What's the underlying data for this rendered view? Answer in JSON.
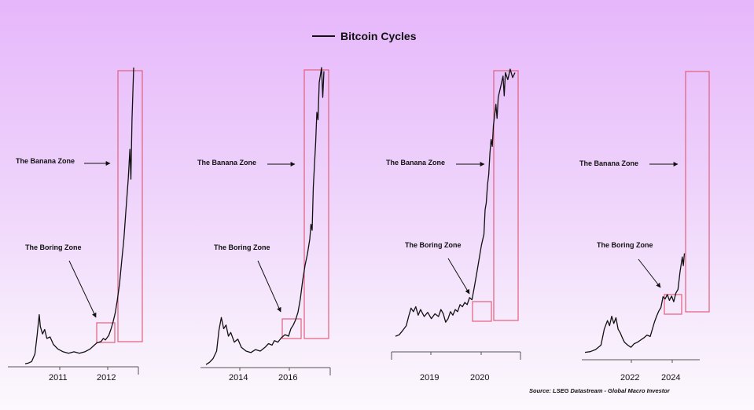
{
  "chart_data": {
    "type": "line",
    "title": "Bitcoin Cycles",
    "legend": {
      "entries": [
        "Bitcoin Cycles"
      ],
      "placement": "top-center"
    },
    "source": "Source: LSEG Datastream - Global Macro Investor",
    "grid": false,
    "colors": {
      "line": "#111111",
      "zone_box": "#e0607e",
      "axis": "#555555"
    },
    "panels": [
      {
        "x_ticks": [
          "2011",
          "2012"
        ],
        "annotations": [
          "The Banana Zone",
          "The Boring Zone"
        ],
        "series": [
          [
            0,
            2
          ],
          [
            3,
            3
          ],
          [
            6,
            5
          ],
          [
            9,
            15
          ],
          [
            11,
            40
          ],
          [
            12,
            55
          ],
          [
            13,
            68
          ],
          [
            14,
            52
          ],
          [
            16,
            42
          ],
          [
            18,
            48
          ],
          [
            20,
            36
          ],
          [
            23,
            38
          ],
          [
            26,
            28
          ],
          [
            30,
            22
          ],
          [
            35,
            18
          ],
          [
            40,
            16
          ],
          [
            45,
            18
          ],
          [
            50,
            16
          ],
          [
            55,
            18
          ],
          [
            60,
            22
          ],
          [
            63,
            26
          ],
          [
            66,
            30
          ],
          [
            70,
            32
          ],
          [
            72,
            36
          ],
          [
            74,
            34
          ],
          [
            77,
            40
          ],
          [
            79,
            48
          ],
          [
            81,
            58
          ],
          [
            83,
            70
          ],
          [
            85,
            88
          ],
          [
            87,
            110
          ],
          [
            89,
            140
          ],
          [
            91,
            170
          ],
          [
            93,
            210
          ],
          [
            95,
            250
          ],
          [
            96.5,
            290
          ],
          [
            97.5,
            250
          ],
          [
            98.5,
            330
          ],
          [
            100,
            400
          ]
        ]
      },
      {
        "x_ticks": [
          "2014",
          "2016"
        ],
        "annotations": [
          "The Banana Zone",
          "The Boring Zone"
        ],
        "series": [
          [
            0,
            2
          ],
          [
            3,
            5
          ],
          [
            6,
            10
          ],
          [
            9,
            20
          ],
          [
            11,
            48
          ],
          [
            13,
            65
          ],
          [
            15,
            50
          ],
          [
            17,
            55
          ],
          [
            19,
            40
          ],
          [
            21,
            45
          ],
          [
            24,
            32
          ],
          [
            27,
            36
          ],
          [
            30,
            25
          ],
          [
            34,
            20
          ],
          [
            38,
            18
          ],
          [
            42,
            22
          ],
          [
            46,
            20
          ],
          [
            50,
            25
          ],
          [
            53,
            30
          ],
          [
            56,
            28
          ],
          [
            58,
            34
          ],
          [
            61,
            32
          ],
          [
            64,
            38
          ],
          [
            67,
            42
          ],
          [
            70,
            40
          ],
          [
            72,
            50
          ],
          [
            74,
            55
          ],
          [
            76,
            62
          ],
          [
            78,
            72
          ],
          [
            80,
            90
          ],
          [
            82,
            115
          ],
          [
            84,
            135
          ],
          [
            86,
            150
          ],
          [
            88,
            170
          ],
          [
            89,
            190
          ],
          [
            90,
            182
          ],
          [
            91,
            240
          ],
          [
            92,
            270
          ],
          [
            93,
            300
          ],
          [
            94,
            340
          ],
          [
            95,
            330
          ],
          [
            96,
            380
          ],
          [
            98,
            400
          ],
          [
            99,
            360
          ],
          [
            100,
            395
          ]
        ]
      },
      {
        "x_ticks": [
          "2019",
          "2020"
        ],
        "annotations": [
          "The Banana Zone",
          "The Boring Zone"
        ],
        "series": [
          [
            0,
            20
          ],
          [
            3,
            22
          ],
          [
            6,
            28
          ],
          [
            9,
            35
          ],
          [
            11,
            48
          ],
          [
            13,
            60
          ],
          [
            15,
            55
          ],
          [
            17,
            62
          ],
          [
            19,
            50
          ],
          [
            21,
            58
          ],
          [
            24,
            48
          ],
          [
            27,
            54
          ],
          [
            30,
            45
          ],
          [
            33,
            52
          ],
          [
            36,
            48
          ],
          [
            38,
            58
          ],
          [
            40,
            52
          ],
          [
            42,
            40
          ],
          [
            44,
            45
          ],
          [
            46,
            55
          ],
          [
            48,
            50
          ],
          [
            50,
            58
          ],
          [
            52,
            55
          ],
          [
            54,
            65
          ],
          [
            56,
            62
          ],
          [
            58,
            68
          ],
          [
            60,
            65
          ],
          [
            62,
            75
          ],
          [
            64,
            72
          ],
          [
            66,
            90
          ],
          [
            68,
            110
          ],
          [
            70,
            130
          ],
          [
            72,
            150
          ],
          [
            74,
            165
          ],
          [
            75,
            200
          ],
          [
            76,
            210
          ],
          [
            77,
            235
          ],
          [
            78,
            250
          ],
          [
            79,
            280
          ],
          [
            80,
            300
          ],
          [
            81,
            290
          ],
          [
            82,
            320
          ],
          [
            83,
            335
          ],
          [
            84,
            350
          ],
          [
            85,
            330
          ],
          [
            86,
            360
          ],
          [
            88,
            375
          ],
          [
            90,
            390
          ],
          [
            91,
            362
          ],
          [
            92,
            395
          ],
          [
            94,
            385
          ],
          [
            96,
            400
          ],
          [
            98,
            388
          ],
          [
            100,
            395
          ]
        ]
      },
      {
        "x_ticks": [
          "2022",
          "2024"
        ],
        "annotations": [
          "The Banana Zone",
          "The Boring Zone"
        ],
        "series": [
          [
            0,
            8
          ],
          [
            5,
            9
          ],
          [
            10,
            12
          ],
          [
            15,
            18
          ],
          [
            18,
            40
          ],
          [
            21,
            52
          ],
          [
            23,
            45
          ],
          [
            25,
            58
          ],
          [
            27,
            48
          ],
          [
            29,
            56
          ],
          [
            31,
            40
          ],
          [
            33,
            35
          ],
          [
            35,
            28
          ],
          [
            37,
            22
          ],
          [
            40,
            18
          ],
          [
            43,
            15
          ],
          [
            46,
            20
          ],
          [
            49,
            22
          ],
          [
            52,
            25
          ],
          [
            55,
            28
          ],
          [
            58,
            32
          ],
          [
            61,
            30
          ],
          [
            63,
            40
          ],
          [
            65,
            50
          ],
          [
            67,
            58
          ],
          [
            69,
            65
          ],
          [
            71,
            70
          ],
          [
            73,
            85
          ],
          [
            75,
            82
          ],
          [
            77,
            88
          ],
          [
            79,
            80
          ],
          [
            81,
            86
          ],
          [
            83,
            78
          ],
          [
            85,
            90
          ],
          [
            87,
            95
          ],
          [
            89,
            120
          ],
          [
            91,
            140
          ],
          [
            92,
            128
          ],
          [
            93,
            145
          ]
        ]
      }
    ]
  }
}
